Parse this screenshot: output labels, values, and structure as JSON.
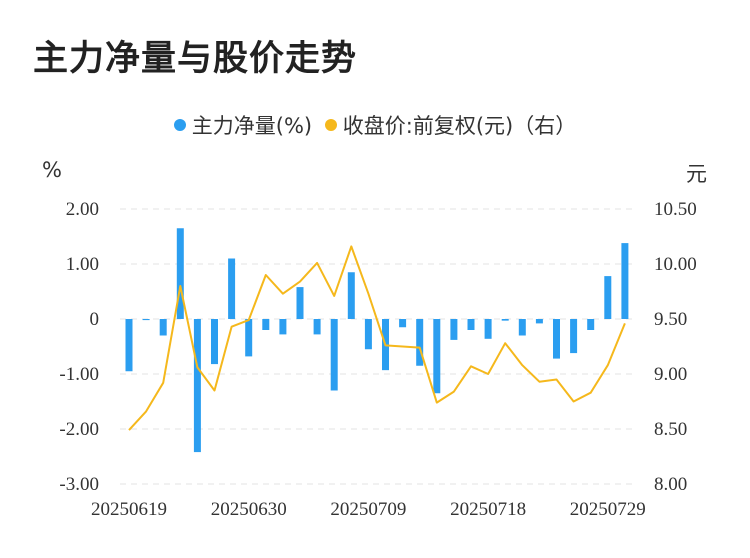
{
  "title": "主力净量与股价走势",
  "legend": {
    "items": [
      {
        "label": "主力净量(%)",
        "color": "#2b9ef0"
      },
      {
        "label": "收盘价:前复权(元)（右）",
        "color": "#f5b81c"
      }
    ]
  },
  "units": {
    "left": "%",
    "right": "元"
  },
  "chart_data": {
    "type": "bar+line",
    "x_tick_labels": [
      "20250619",
      "20250630",
      "20250709",
      "20250718",
      "20250729"
    ],
    "x_tick_indices": [
      0,
      7,
      14,
      21,
      28
    ],
    "left_axis": {
      "ylim": [
        -3,
        2
      ],
      "ticks": [
        2,
        1,
        0,
        -1,
        -2,
        -3
      ],
      "tick_labels": [
        "2.00",
        "1.00",
        "0",
        "-1.00",
        "-2.00",
        "-3.00"
      ]
    },
    "right_axis": {
      "ylim": [
        8.0,
        10.5
      ],
      "ticks": [
        10.5,
        10.0,
        9.5,
        9.0,
        8.5,
        8.0
      ],
      "tick_labels": [
        "10.50",
        "10.00",
        "9.50",
        "9.00",
        "8.50",
        "8.00"
      ]
    },
    "grid": true,
    "series": [
      {
        "name": "主力净量(%)",
        "type": "bar",
        "axis": "left",
        "color": "#2b9ef0",
        "values": [
          -0.95,
          -0.02,
          -0.3,
          1.65,
          -2.42,
          -0.82,
          1.1,
          -0.68,
          -0.2,
          -0.28,
          0.58,
          -0.28,
          -1.3,
          0.85,
          -0.55,
          -0.93,
          -0.15,
          -0.85,
          -1.35,
          -0.38,
          -0.2,
          -0.36,
          -0.03,
          -0.3,
          -0.08,
          -0.72,
          -0.62,
          -0.2,
          0.78,
          1.38
        ]
      },
      {
        "name": "收盘价:前复权(元)（右）",
        "type": "line",
        "axis": "right",
        "color": "#f5b81c",
        "values": [
          8.49,
          8.66,
          8.92,
          9.8,
          9.06,
          8.85,
          9.43,
          9.49,
          9.9,
          9.73,
          9.84,
          10.01,
          9.71,
          10.16,
          9.73,
          9.26,
          9.25,
          9.24,
          8.74,
          8.84,
          9.07,
          9.0,
          9.28,
          9.08,
          8.93,
          8.95,
          8.75,
          8.83,
          9.08,
          9.46
        ]
      }
    ]
  }
}
